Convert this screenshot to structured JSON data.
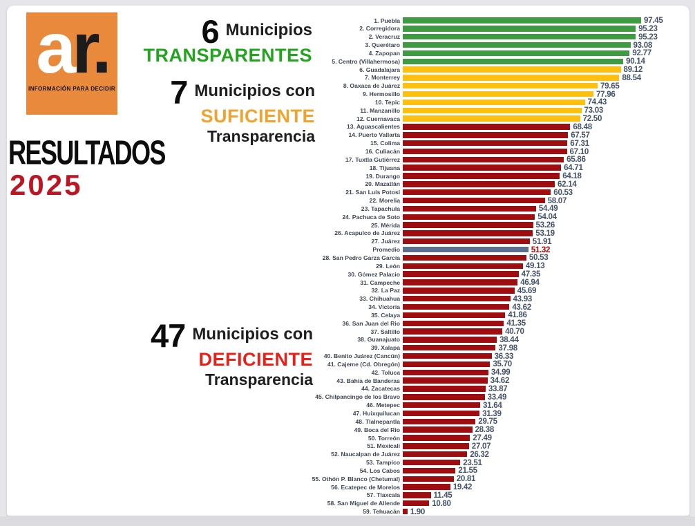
{
  "theme": {
    "logo_bg": "#e8893c",
    "results_color": "#0d0d0d",
    "year_color": "#bd1622",
    "transparent_text": "#23a41f",
    "sufficient_text": "#efa42f",
    "deficient_text": "#e92017"
  },
  "branding": {
    "logo_a": "a",
    "logo_r": "r.",
    "tagline": "INFORMACIÓN PARA DECIDIR",
    "results": "RESULTADOS",
    "year": "2025"
  },
  "annotations": {
    "transparent": {
      "count": "6",
      "label": "Municipios",
      "emphasis": "TRANSPARENTES"
    },
    "sufficient": {
      "count": "7",
      "label": "Municipios con",
      "emphasis": "SUFICIENTE",
      "suffix": "Transparencia"
    },
    "deficient": {
      "count": "47",
      "label": "Municipios con",
      "emphasis": "DEFICIENTE",
      "suffix": "Transparencia"
    }
  },
  "chart_data": {
    "type": "bar",
    "orientation": "horizontal",
    "xlim": [
      0,
      100
    ],
    "grid": false,
    "legend": false,
    "value_color": "#44546a",
    "average_value_color": "#c00000",
    "colors": {
      "transparent": "#3e9b41",
      "sufficient": "#fdc011",
      "deficient": "#a00d10",
      "average": "#5b6f8e"
    },
    "rows": [
      {
        "label": "1. Puebla",
        "value": 97.45,
        "display": "97.45",
        "category": "transparent"
      },
      {
        "label": "2. Corregidora",
        "value": 95.23,
        "display": "95.23",
        "category": "transparent"
      },
      {
        "label": "2. Veracruz",
        "value": 95.23,
        "display": "95.23",
        "category": "transparent"
      },
      {
        "label": "3. Querétaro",
        "value": 93.08,
        "display": "93.08",
        "category": "transparent"
      },
      {
        "label": "4. Zapopan",
        "value": 92.77,
        "display": "92.77",
        "category": "transparent"
      },
      {
        "label": "5. Centro (Villahermosa)",
        "value": 90.14,
        "display": "90.14",
        "category": "transparent"
      },
      {
        "label": "6. Guadalajara",
        "value": 89.12,
        "display": "89.12",
        "category": "sufficient"
      },
      {
        "label": "7. Monterrey",
        "value": 88.54,
        "display": "88.54",
        "category": "sufficient"
      },
      {
        "label": "8. Oaxaca de Juárez",
        "value": 79.65,
        "display": "79.65",
        "category": "sufficient"
      },
      {
        "label": "9. Hermosillo",
        "value": 77.96,
        "display": "77.96",
        "category": "sufficient"
      },
      {
        "label": "10. Tepic",
        "value": 74.43,
        "display": "74.43",
        "category": "sufficient"
      },
      {
        "label": "11. Manzanillo",
        "value": 73.03,
        "display": "73.03",
        "category": "sufficient"
      },
      {
        "label": "12. Cuernavaca",
        "value": 72.5,
        "display": "72.50",
        "category": "sufficient"
      },
      {
        "label": "13. Aguascalientes",
        "value": 68.48,
        "display": "68.48",
        "category": "deficient"
      },
      {
        "label": "14. Puerto Vallarta",
        "value": 67.57,
        "display": "67.57",
        "category": "deficient"
      },
      {
        "label": "15. Colima",
        "value": 67.31,
        "display": "67.31",
        "category": "deficient"
      },
      {
        "label": "16. Culiacán",
        "value": 67.1,
        "display": "67.10",
        "category": "deficient"
      },
      {
        "label": "17. Tuxtla Gutiérrez",
        "value": 65.86,
        "display": "65.86",
        "category": "deficient"
      },
      {
        "label": "18. Tijuana",
        "value": 64.71,
        "display": "64.71",
        "category": "deficient"
      },
      {
        "label": "19. Durango",
        "value": 64.18,
        "display": "64.18",
        "category": "deficient"
      },
      {
        "label": "20. Mazatlán",
        "value": 62.14,
        "display": "62.14",
        "category": "deficient"
      },
      {
        "label": "21. San Luis Potosí",
        "value": 60.53,
        "display": "60.53",
        "category": "deficient"
      },
      {
        "label": "22. Morelia",
        "value": 58.07,
        "display": "58.07",
        "category": "deficient"
      },
      {
        "label": "23. Tapachula",
        "value": 54.49,
        "display": "54.49",
        "category": "deficient"
      },
      {
        "label": "24. Pachuca de Soto",
        "value": 54.04,
        "display": "54.04",
        "category": "deficient"
      },
      {
        "label": "25. Mérida",
        "value": 53.26,
        "display": "53.26",
        "category": "deficient"
      },
      {
        "label": "26. Acapulco de Juárez",
        "value": 53.19,
        "display": "53.19",
        "category": "deficient"
      },
      {
        "label": "27. Juárez",
        "value": 51.91,
        "display": "51.91",
        "category": "deficient"
      },
      {
        "label": "Promedio",
        "value": 51.32,
        "display": "51.32",
        "category": "average"
      },
      {
        "label": "28. San Pedro Garza García",
        "value": 50.53,
        "display": "50.53",
        "category": "deficient"
      },
      {
        "label": "29. León",
        "value": 49.13,
        "display": "49.13",
        "category": "deficient"
      },
      {
        "label": "30. Gómez Palacio",
        "value": 47.35,
        "display": "47.35",
        "category": "deficient"
      },
      {
        "label": "31. Campeche",
        "value": 46.94,
        "display": "46.94",
        "category": "deficient"
      },
      {
        "label": "32. La Paz",
        "value": 45.69,
        "display": "45.69",
        "category": "deficient"
      },
      {
        "label": "33. Chihuahua",
        "value": 43.93,
        "display": "43.93",
        "category": "deficient"
      },
      {
        "label": "34. Victoria",
        "value": 43.62,
        "display": "43.62",
        "category": "deficient"
      },
      {
        "label": "35. Celaya",
        "value": 41.86,
        "display": "41.86",
        "category": "deficient"
      },
      {
        "label": "36. San Juan del Rio",
        "value": 41.35,
        "display": "41.35",
        "category": "deficient"
      },
      {
        "label": "37. Saltillo",
        "value": 40.7,
        "display": "40.70",
        "category": "deficient"
      },
      {
        "label": "38. Guanajuato",
        "value": 38.44,
        "display": "38.44",
        "category": "deficient"
      },
      {
        "label": "39. Xalapa",
        "value": 37.98,
        "display": "37.98",
        "category": "deficient"
      },
      {
        "label": "40. Benito Juárez (Cancún)",
        "value": 36.33,
        "display": "36.33",
        "category": "deficient"
      },
      {
        "label": "41. Cajeme (Cd. Obregón)",
        "value": 35.7,
        "display": "35.70",
        "category": "deficient"
      },
      {
        "label": "42. Toluca",
        "value": 34.99,
        "display": "34.99",
        "category": "deficient"
      },
      {
        "label": "43. Bahía de Banderas",
        "value": 34.62,
        "display": "34.62",
        "category": "deficient"
      },
      {
        "label": "44. Zacatecas",
        "value": 33.87,
        "display": "33.87",
        "category": "deficient"
      },
      {
        "label": "45. Chilpancingo de los Bravo",
        "value": 33.49,
        "display": "33.49",
        "category": "deficient"
      },
      {
        "label": "46. Metepec",
        "value": 31.64,
        "display": "31.64",
        "category": "deficient"
      },
      {
        "label": "47. Huixquilucan",
        "value": 31.39,
        "display": "31.39",
        "category": "deficient"
      },
      {
        "label": "48. Tlalnepantla",
        "value": 29.75,
        "display": "29.75",
        "category": "deficient"
      },
      {
        "label": "49. Boca del Rio",
        "value": 28.38,
        "display": "28.38",
        "category": "deficient"
      },
      {
        "label": "50. Torreón",
        "value": 27.49,
        "display": "27.49",
        "category": "deficient"
      },
      {
        "label": "51. Mexicali",
        "value": 27.07,
        "display": "27.07",
        "category": "deficient"
      },
      {
        "label": "52. Naucalpan de Juárez",
        "value": 26.32,
        "display": "26.32",
        "category": "deficient"
      },
      {
        "label": "53. Tampico",
        "value": 23.51,
        "display": "23.51",
        "category": "deficient"
      },
      {
        "label": "54. Los Cabos",
        "value": 21.55,
        "display": "21.55",
        "category": "deficient"
      },
      {
        "label": "55. Othón P. Blanco (Chetumal)",
        "value": 20.81,
        "display": "20.81",
        "category": "deficient"
      },
      {
        "label": "56. Ecatepec de Morelos",
        "value": 19.42,
        "display": "19.42",
        "category": "deficient"
      },
      {
        "label": "57. Tlaxcala",
        "value": 11.45,
        "display": "11.45",
        "category": "deficient"
      },
      {
        "label": "58. San Miguel de Allende",
        "value": 10.8,
        "display": "10.80",
        "category": "deficient"
      },
      {
        "label": "59. Tehuacán",
        "value": 1.9,
        "display": "1.90",
        "category": "deficient"
      }
    ]
  }
}
